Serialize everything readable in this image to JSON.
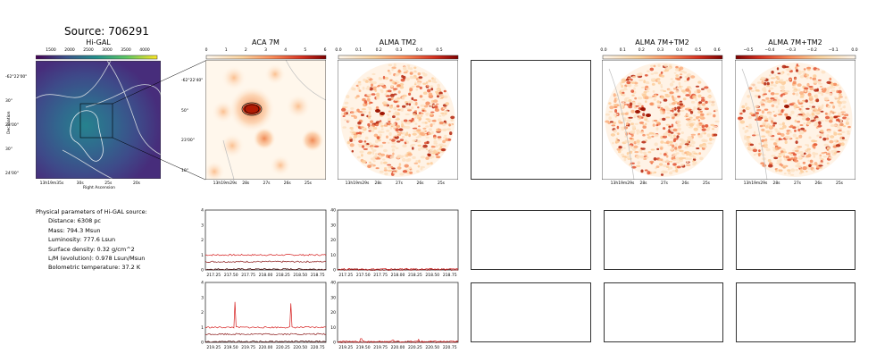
{
  "title": "Source: 706291",
  "colors": {
    "ink": "#000000",
    "frame": "#333333",
    "series_red": "#d62020",
    "series_dark": "#4a0a0a",
    "heat_peak": "#b31b04"
  },
  "panels": {
    "higal": {
      "title": "Hi-GAL",
      "colorbar_ticks": [
        "1500",
        "2000",
        "2500",
        "3000",
        "3500",
        "4000"
      ],
      "ra_ticks": [
        "13h19m35s",
        "30s",
        "25s",
        "20s"
      ],
      "dec_ticks": [
        "-62°22'00\"",
        "30\"",
        "23'00\"",
        "30\"",
        "24'00\""
      ],
      "xlabel": "Right Ascension",
      "ylabel": "Declination"
    },
    "aca": {
      "title": "ACA 7M",
      "colorbar_ticks": [
        "0",
        "1",
        "2",
        "3",
        "4",
        "5",
        "6"
      ],
      "ra_ticks": [
        "13h19m29s",
        "28s",
        "27s",
        "26s",
        "25s"
      ],
      "dec_ticks": [
        "-62°22'40\"",
        "50\"",
        "23'00\"",
        "10\""
      ]
    },
    "tm2": {
      "title": "ALMA TM2",
      "colorbar_ticks": [
        "0.0",
        "0.1",
        "0.2",
        "0.3",
        "0.4",
        "0.5"
      ],
      "ra_ticks": [
        "13h19m29s",
        "28s",
        "27s",
        "26s",
        "25s"
      ]
    },
    "tm2_7m": {
      "title": "ALMA 7M+TM2",
      "colorbar_ticks": [
        "0.0",
        "0.1",
        "0.2",
        "0.3",
        "0.4",
        "0.5",
        "0.6"
      ],
      "ra_ticks": [
        "13h19m29s",
        "28s",
        "27s",
        "26s",
        "25s"
      ]
    },
    "tm2_7m_neg": {
      "title": "ALMA 7M+TM2",
      "colorbar_ticks": [
        "−0.5",
        "−0.4",
        "−0.3",
        "−0.2",
        "−0.1",
        "0.0"
      ],
      "ra_ticks": [
        "13h19m29s",
        "28s",
        "27s",
        "26s",
        "25s"
      ]
    }
  },
  "params": {
    "heading": "Physical parameters of Hi-GAL source:",
    "lines": [
      "Distance: 6308 pc",
      "Mass: 794.3 Msun",
      "Luminosity: 777.6 Lsun",
      "Surface density: 0.32 g/cm^2",
      "L/M (evolution): 0.978 Lsun/Msun",
      "Bolometric temperature: 37.2 K"
    ]
  },
  "chart_data": [
    {
      "type": "line",
      "panel": "ACA 7M spectrum, upper",
      "x_ticks": [
        "217.25",
        "217.50",
        "217.75",
        "218.00",
        "218.25",
        "218.50",
        "218.75"
      ],
      "ylim": [
        0,
        4
      ],
      "y_ticks": [
        "0",
        "1",
        "2",
        "3",
        "4"
      ],
      "series_levels": [
        1.0,
        0.55,
        0.05
      ],
      "spikes": []
    },
    {
      "type": "line",
      "panel": "ALMA TM2 spectrum, upper",
      "x_ticks": [
        "217.25",
        "217.50",
        "217.75",
        "218.00",
        "218.25",
        "218.50",
        "218.75"
      ],
      "ylim": [
        0,
        40
      ],
      "y_ticks": [
        "0",
        "10",
        "20",
        "30",
        "40"
      ],
      "series_levels": [
        0.5,
        0.2
      ],
      "spikes": []
    },
    {
      "type": "line",
      "panel": "ACA 7M spectrum, lower",
      "x_ticks": [
        "219.25",
        "219.50",
        "219.75",
        "220.00",
        "220.25",
        "220.50",
        "220.75"
      ],
      "ylim": [
        0,
        4
      ],
      "y_ticks": [
        "0",
        "1",
        "2",
        "3",
        "4"
      ],
      "series_levels": [
        1.0,
        0.55,
        0.05
      ],
      "spikes": [
        [
          219.56,
          2.7
        ],
        [
          220.36,
          2.6
        ]
      ]
    },
    {
      "type": "line",
      "panel": "ALMA TM2 spectrum, lower",
      "x_ticks": [
        "219.25",
        "219.50",
        "219.75",
        "220.00",
        "220.25",
        "220.50",
        "220.75"
      ],
      "ylim": [
        0,
        40
      ],
      "y_ticks": [
        "0",
        "10",
        "20",
        "30",
        "40"
      ],
      "series_levels": [
        0.5,
        0.2
      ],
      "spikes": [
        [
          219.47,
          2.5
        ],
        [
          219.93,
          1.5
        ],
        [
          220.3,
          2.0
        ]
      ]
    }
  ]
}
